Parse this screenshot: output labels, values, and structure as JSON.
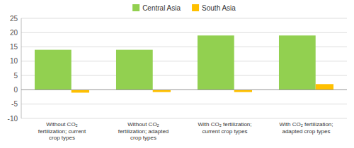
{
  "chart_data": {
    "type": "bar",
    "categories": [
      "Without CO₂\nfertilization; current\ncrop types",
      "Without CO₂\nfertilization; adapted\ncrop types",
      "With CO₂ fertilization;\ncurrent crop types",
      "With CO₂ fertilization;\nadapted crop types"
    ],
    "series": [
      {
        "name": "Central Asia",
        "color": "#92d050",
        "values": [
          14.0,
          14.0,
          19.0,
          19.0
        ]
      },
      {
        "name": "South Asia",
        "color": "#ffc000",
        "values": [
          -1.0,
          -0.8,
          -0.8,
          2.0
        ]
      }
    ],
    "ylim": [
      -10,
      25
    ],
    "yticks": [
      -10,
      -5,
      0,
      5,
      10,
      15,
      20,
      25
    ],
    "grid": true,
    "legend": "top"
  }
}
